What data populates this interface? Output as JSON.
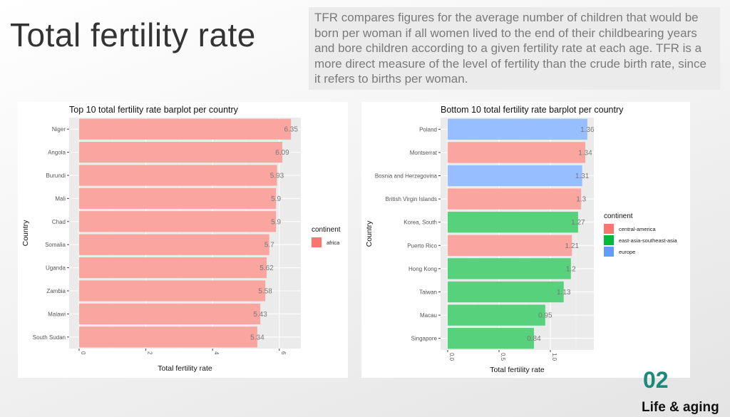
{
  "slide": {
    "title": "Total fertility rate",
    "description": "TFR compares figures for the average number of children that would be born per woman if all women lived to the end of their childbearing years and bore children according to a given fertility rate at each age. TFR is a more direct measure of the level of fertility than the crude birth rate, since it refers to births per woman.",
    "section_number": "02",
    "section_name": "Life & aging"
  },
  "colors": {
    "central-america": "#f8766d",
    "africa": "#f8766d",
    "east-asia-southeast-asia": "#00ba38",
    "europe": "#619cff"
  },
  "chart_data": [
    {
      "type": "bar",
      "orientation": "horizontal",
      "title": "Top 10 total fertility rate barplot per country",
      "xlabel": "Total fertility rate",
      "ylabel": "Country",
      "xlim": [
        0,
        6.67
      ],
      "xticks": [
        "0",
        "2",
        "4",
        "6"
      ],
      "xtick_values": [
        0,
        2,
        4,
        6
      ],
      "categories": [
        "Niger",
        "Angola",
        "Burundi",
        "Mali",
        "Chad",
        "Somalia",
        "Uganda",
        "Zambia",
        "Malawi",
        "South Sudan"
      ],
      "values": [
        6.35,
        6.09,
        5.93,
        5.9,
        5.9,
        5.7,
        5.62,
        5.58,
        5.43,
        5.34
      ],
      "labels": [
        "6.35",
        "6.09",
        "5.93",
        "5.9",
        "5.9",
        "5.7",
        "5.62",
        "5.58",
        "5.43",
        "5.34"
      ],
      "groups": [
        "africa",
        "africa",
        "africa",
        "africa",
        "africa",
        "africa",
        "africa",
        "africa",
        "africa",
        "africa"
      ],
      "legend": {
        "title": "continent",
        "entries": [
          "africa"
        ],
        "placement": "right"
      },
      "grid": true
    },
    {
      "type": "bar",
      "orientation": "horizontal",
      "title": "Bottom 10 total fertility rate barplot per country",
      "xlabel": "Total fertility rate",
      "ylabel": "Country",
      "xlim": [
        0,
        1.43
      ],
      "xticks": [
        "0.0",
        "0.5",
        "1.0"
      ],
      "xtick_values": [
        0,
        0.5,
        1.0
      ],
      "categories": [
        "Poland",
        "Montserrat",
        "Bosnia and Herzegovina",
        "British Virgin Islands",
        "Korea, South",
        "Puerto Rico",
        "Hong Kong",
        "Taiwan",
        "Macau",
        "Singapore"
      ],
      "values": [
        1.36,
        1.34,
        1.31,
        1.3,
        1.27,
        1.21,
        1.2,
        1.13,
        0.95,
        0.84
      ],
      "labels": [
        "1.36",
        "1.34",
        "1.31",
        "1.3",
        "1.27",
        "1.21",
        "1.2",
        "1.13",
        "0.95",
        "0.84"
      ],
      "groups": [
        "europe",
        "central-america",
        "europe",
        "central-america",
        "east-asia-southeast-asia",
        "central-america",
        "east-asia-southeast-asia",
        "east-asia-southeast-asia",
        "east-asia-southeast-asia",
        "east-asia-southeast-asia"
      ],
      "legend": {
        "title": "continent",
        "entries": [
          "central-america",
          "east-asia-southeast-asia",
          "europe"
        ],
        "placement": "right"
      },
      "grid": true
    }
  ]
}
